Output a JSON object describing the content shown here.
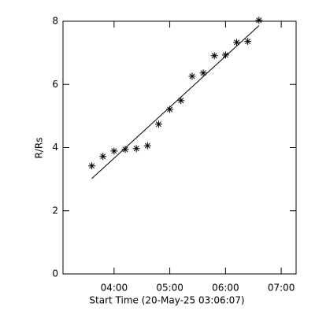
{
  "chart_data": {
    "type": "scatter",
    "xlabel": "Start Time (20-May-25 03:06:07)",
    "ylabel": "R/Rs",
    "x": [
      216,
      228,
      240,
      252,
      264,
      276,
      288,
      300,
      312,
      324,
      336,
      348,
      360,
      372,
      384,
      396
    ],
    "values": [
      3.42,
      3.72,
      3.89,
      3.94,
      3.97,
      4.06,
      4.74,
      5.21,
      5.49,
      6.26,
      6.36,
      6.91,
      6.93,
      7.33,
      7.36,
      8.03
    ],
    "fit": {
      "x": [
        216,
        396
      ],
      "values": [
        3.02,
        7.86
      ]
    },
    "color": "#000000",
    "xlim": [
      185,
      436
    ],
    "xticks": [
      {
        "value": 240,
        "label": "04:00"
      },
      {
        "value": 300,
        "label": "05:00"
      },
      {
        "value": 360,
        "label": "06:00"
      },
      {
        "value": 420,
        "label": "07:00"
      }
    ],
    "ylim": [
      0,
      8
    ],
    "yticks": [
      0,
      2,
      4,
      6,
      8
    ]
  }
}
